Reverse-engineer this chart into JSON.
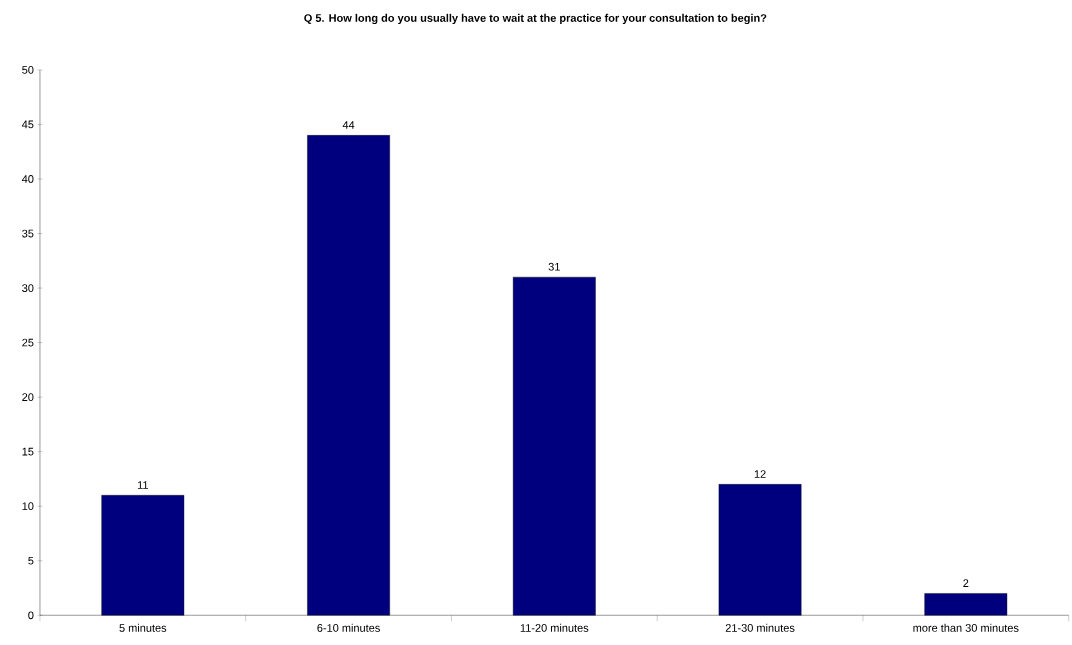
{
  "chart_data": {
    "type": "bar",
    "title": "Q 5. How long do you usually have to wait at the practice for your consultation to begin?",
    "categories": [
      "5 minutes",
      "6-10 minutes",
      "11-20 minutes",
      "21-30 minutes",
      "more than 30 minutes"
    ],
    "values": [
      11,
      44,
      31,
      12,
      2
    ],
    "color": "#00007f",
    "ylim": [
      0,
      50
    ],
    "yticks": [
      0,
      5,
      10,
      15,
      20,
      25,
      30,
      35,
      40,
      45,
      50
    ],
    "data_labels": true,
    "grid": false
  }
}
